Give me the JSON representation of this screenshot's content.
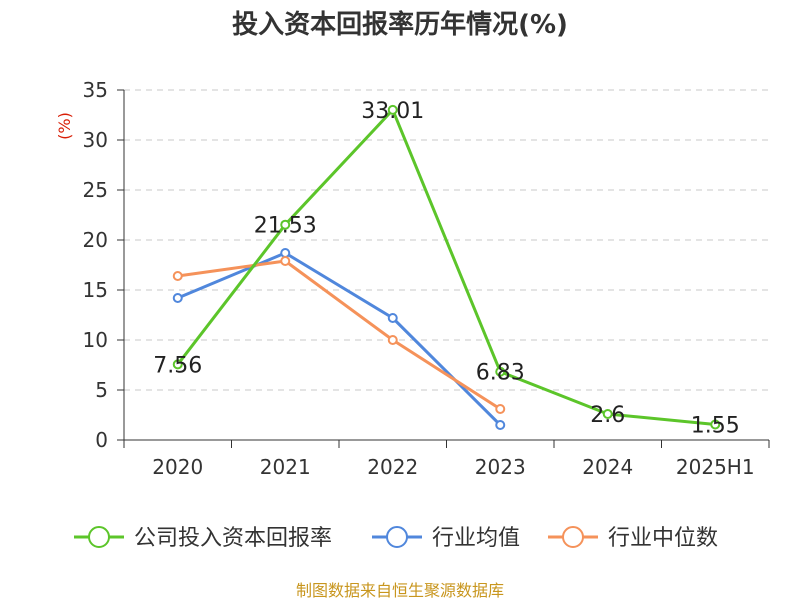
{
  "chart_data": {
    "type": "line",
    "title": "投入资本回报率历年情况(%)",
    "ylabel": "(%)",
    "xlabel": "",
    "categories": [
      "2020",
      "2021",
      "2022",
      "2023",
      "2024",
      "2025H1"
    ],
    "ylim": [
      0,
      35
    ],
    "yticks": [
      0,
      5,
      10,
      15,
      20,
      25,
      30,
      35
    ],
    "grid": true,
    "legend_position": "bottom",
    "series": [
      {
        "name": "公司投入资本回报率",
        "color": "#5cc52a",
        "values": [
          7.56,
          21.53,
          33.01,
          6.83,
          2.6,
          1.55
        ],
        "labels": [
          "7.56",
          "21.53",
          "33.01",
          "6.83",
          "2.6",
          "1.55"
        ]
      },
      {
        "name": "行业均值",
        "color": "#5087dc",
        "values": [
          14.2,
          18.7,
          12.2,
          1.5,
          null,
          null
        ]
      },
      {
        "name": "行业中位数",
        "color": "#f5925a",
        "values": [
          16.4,
          17.9,
          10.0,
          3.1,
          null,
          null
        ]
      }
    ],
    "source": "制图数据来自恒生聚源数据库"
  }
}
